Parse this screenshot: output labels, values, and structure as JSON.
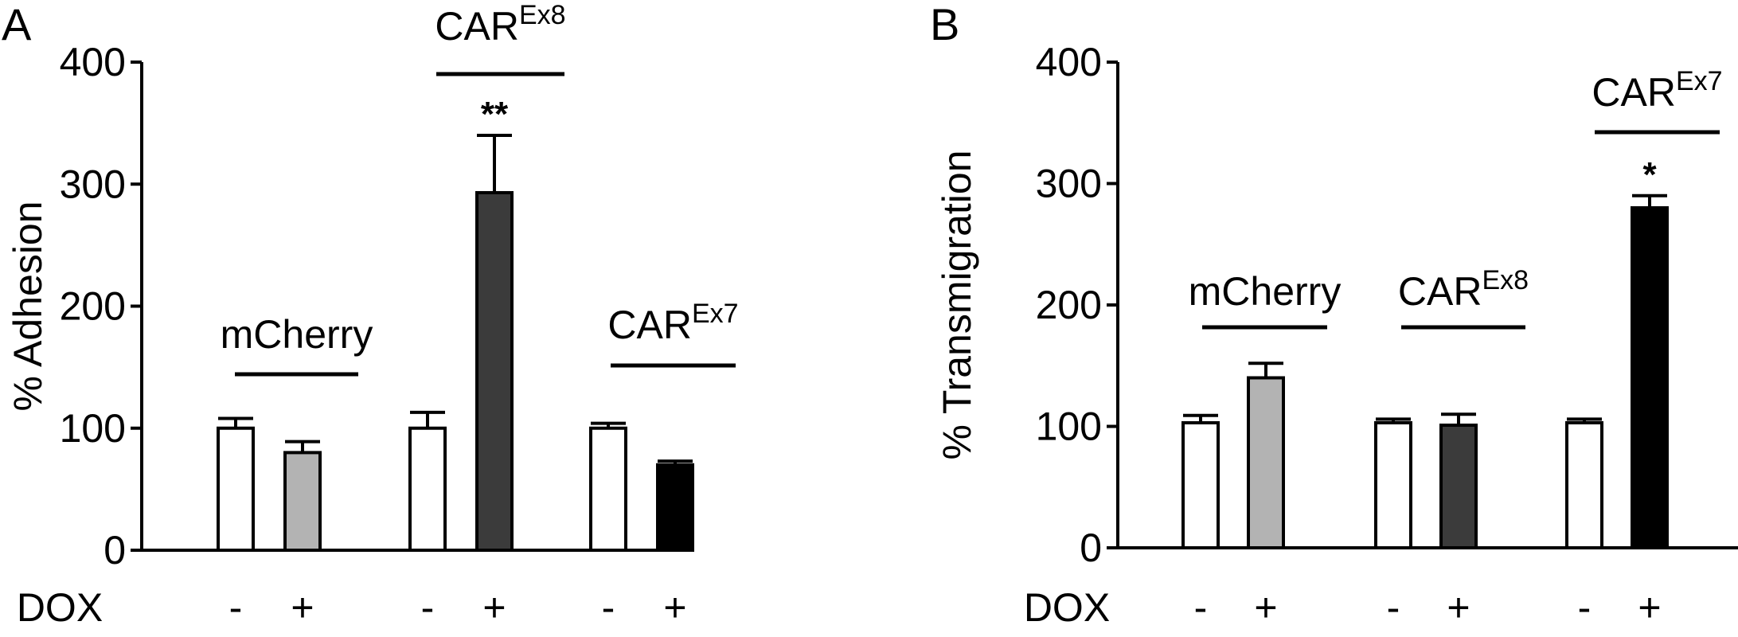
{
  "chart_data": [
    {
      "panel": "A",
      "type": "bar",
      "ylabel": "% Adhesion",
      "ylim": [
        0,
        400
      ],
      "yticks": [
        "0",
        "100",
        "200",
        "300",
        "400"
      ],
      "row_label": "DOX",
      "groups": [
        {
          "name": "mCherry",
          "name_sup": "",
          "bars": [
            {
              "dox": "-",
              "value": 100,
              "error": 8,
              "color": "#ffffff",
              "sig": ""
            },
            {
              "dox": "+",
              "value": 80,
              "error": 9,
              "color": "#b3b3b3",
              "sig": ""
            }
          ]
        },
        {
          "name": "CAR",
          "name_sup": "Ex8",
          "bars": [
            {
              "dox": "-",
              "value": 100,
              "error": 13,
              "color": "#ffffff",
              "sig": ""
            },
            {
              "dox": "+",
              "value": 293,
              "error": 47,
              "color": "#3b3b3b",
              "sig": "**"
            }
          ]
        },
        {
          "name": "CAR",
          "name_sup": "Ex7",
          "bars": [
            {
              "dox": "-",
              "value": 100,
              "error": 4,
              "color": "#ffffff",
              "sig": ""
            },
            {
              "dox": "+",
              "value": 70,
              "error": 3,
              "color": "#000000",
              "sig": ""
            }
          ]
        }
      ]
    },
    {
      "panel": "B",
      "type": "bar",
      "ylabel": "% Transmigration",
      "ylim": [
        0,
        400
      ],
      "yticks": [
        "0",
        "100",
        "200",
        "300",
        "400"
      ],
      "row_label": "DOX",
      "groups": [
        {
          "name": "mCherry",
          "name_sup": "",
          "bars": [
            {
              "dox": "-",
              "value": 103,
              "error": 6,
              "color": "#ffffff",
              "sig": ""
            },
            {
              "dox": "+",
              "value": 140,
              "error": 12,
              "color": "#b3b3b3",
              "sig": ""
            }
          ]
        },
        {
          "name": "CAR",
          "name_sup": "Ex8",
          "bars": [
            {
              "dox": "-",
              "value": 103,
              "error": 3,
              "color": "#ffffff",
              "sig": ""
            },
            {
              "dox": "+",
              "value": 101,
              "error": 9,
              "color": "#3b3b3b",
              "sig": ""
            }
          ]
        },
        {
          "name": "CAR",
          "name_sup": "Ex7",
          "bars": [
            {
              "dox": "-",
              "value": 103,
              "error": 3,
              "color": "#ffffff",
              "sig": ""
            },
            {
              "dox": "+",
              "value": 280,
              "error": 10,
              "color": "#000000",
              "sig": "*"
            }
          ]
        }
      ]
    }
  ]
}
